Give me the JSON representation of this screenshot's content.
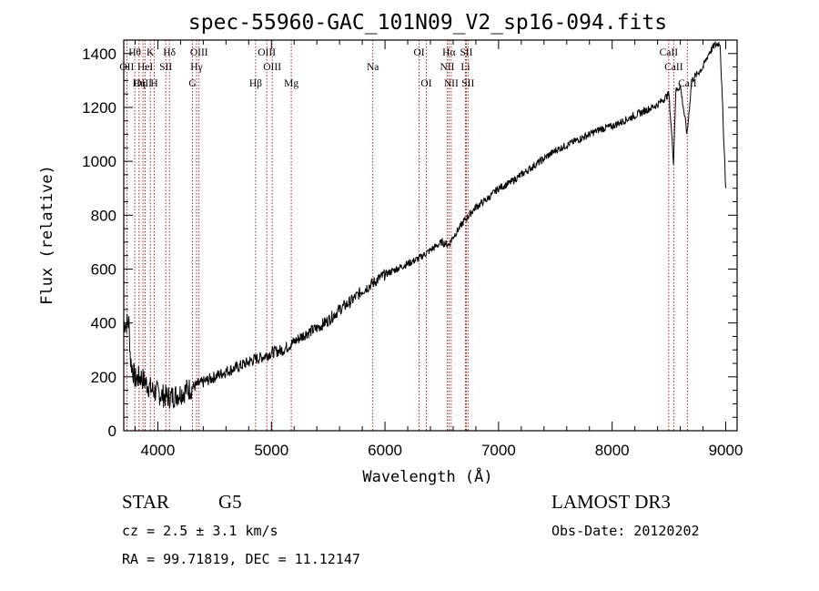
{
  "chart_data": {
    "type": "line",
    "title": "spec-55960-GAC_101N09_V2_sp16-094.fits",
    "xlabel": "Wavelength (Å)",
    "ylabel": "Flux (relative)",
    "xlim": [
      3700,
      9100
    ],
    "ylim": [
      0,
      1450
    ],
    "x_ticks": [
      4000,
      5000,
      6000,
      7000,
      8000,
      9000
    ],
    "y_ticks": [
      0,
      200,
      400,
      600,
      800,
      1000,
      1200,
      1400
    ],
    "series": [
      {
        "name": "spectrum",
        "x": [
          3700,
          3745,
          3760,
          3800,
          3850,
          3900,
          3950,
          4000,
          4050,
          4100,
          4150,
          4200,
          4250,
          4300,
          4350,
          4400,
          4500,
          4600,
          4700,
          4800,
          4850,
          4900,
          5000,
          5100,
          5200,
          5300,
          5400,
          5500,
          5600,
          5700,
          5800,
          5900,
          6000,
          6100,
          6200,
          6300,
          6400,
          6500,
          6560,
          6600,
          6700,
          6800,
          6900,
          7000,
          7100,
          7200,
          7300,
          7400,
          7500,
          7600,
          7700,
          7800,
          7900,
          8000,
          8100,
          8200,
          8300,
          8400,
          8500,
          8540,
          8560,
          8600,
          8660,
          8700,
          8800,
          8850,
          8900,
          8950,
          9000
        ],
        "y": [
          400,
          400,
          260,
          190,
          200,
          175,
          150,
          140,
          130,
          125,
          130,
          140,
          150,
          160,
          170,
          180,
          200,
          220,
          235,
          255,
          265,
          270,
          290,
          300,
          330,
          360,
          380,
          410,
          450,
          480,
          520,
          550,
          580,
          600,
          620,
          640,
          670,
          700,
          690,
          720,
          780,
          830,
          860,
          900,
          920,
          950,
          980,
          1010,
          1040,
          1060,
          1080,
          1100,
          1120,
          1130,
          1150,
          1170,
          1190,
          1210,
          1250,
          1000,
          1260,
          1280,
          1100,
          1300,
          1350,
          1400,
          1430,
          1440,
          900
        ]
      }
    ],
    "lines": [
      {
        "label": "Hθ",
        "wl": 3797,
        "row": 1
      },
      {
        "label": "OII",
        "wl": 3727,
        "row": 2
      },
      {
        "label": "OIII",
        "wl": 3869,
        "row": 3
      },
      {
        "label": "K",
        "wl": 3934,
        "row": 1
      },
      {
        "label": "H",
        "wl": 3969,
        "row": 3
      },
      {
        "label": "HeI",
        "wl": 3889,
        "row": 2
      },
      {
        "label": "Hη",
        "wl": 3835,
        "row": 3
      },
      {
        "label": "SII",
        "wl": 4070,
        "row": 2
      },
      {
        "label": "Hδ",
        "wl": 4102,
        "row": 1
      },
      {
        "label": "OIII",
        "wl": 4363,
        "row": 1
      },
      {
        "label": "Hγ",
        "wl": 4341,
        "row": 2
      },
      {
        "label": "G",
        "wl": 4305,
        "row": 3
      },
      {
        "label": "OIII",
        "wl": 4959,
        "row": 1
      },
      {
        "label": "OIII",
        "wl": 5007,
        "row": 2
      },
      {
        "label": "Hβ",
        "wl": 4861,
        "row": 3
      },
      {
        "label": "Mg",
        "wl": 5175,
        "row": 3
      },
      {
        "label": "Na",
        "wl": 5893,
        "row": 2
      },
      {
        "label": "OI",
        "wl": 6300,
        "row": 1
      },
      {
        "label": "OI",
        "wl": 6364,
        "row": 3
      },
      {
        "label": "Hα",
        "wl": 6563,
        "row": 1
      },
      {
        "label": "NII",
        "wl": 6548,
        "row": 2
      },
      {
        "label": "NII",
        "wl": 6583,
        "row": 3
      },
      {
        "label": "SII",
        "wl": 6716,
        "row": 1
      },
      {
        "label": "Li",
        "wl": 6708,
        "row": 2
      },
      {
        "label": "SII",
        "wl": 6731,
        "row": 3
      },
      {
        "label": "CaII",
        "wl": 8498,
        "row": 1
      },
      {
        "label": "CaII",
        "wl": 8542,
        "row": 2
      },
      {
        "label": "CaII",
        "wl": 8662,
        "row": 3
      }
    ]
  },
  "info": {
    "star_type": "STAR",
    "spectral_class": "G5",
    "survey": "LAMOST DR3",
    "cz": "cz = 2.5 ± 3.1 km/s",
    "obs_date": "Obs-Date: 20120202",
    "coords": "RA =  99.71819, DEC =  11.12147"
  }
}
